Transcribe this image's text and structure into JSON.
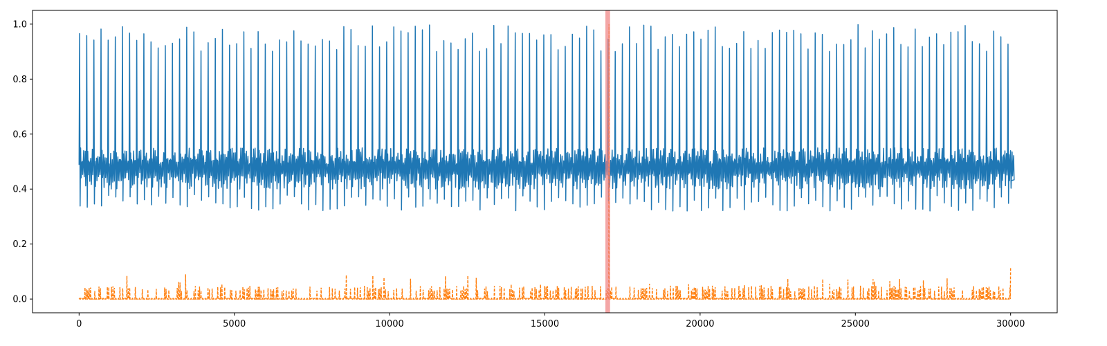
{
  "chart_data": {
    "type": "line",
    "title": "",
    "xlabel": "",
    "ylabel": "",
    "xlim": [
      -1500,
      31500
    ],
    "ylim": [
      -0.05,
      1.05
    ],
    "grid": false,
    "legend": "none",
    "x_ticks": [
      {
        "value": 0,
        "label": "0"
      },
      {
        "value": 5000,
        "label": "5000"
      },
      {
        "value": 10000,
        "label": "10000"
      },
      {
        "value": 15000,
        "label": "15000"
      },
      {
        "value": 20000,
        "label": "20000"
      },
      {
        "value": 25000,
        "label": "25000"
      },
      {
        "value": 30000,
        "label": "30000"
      }
    ],
    "y_ticks": [
      {
        "value": 0.0,
        "label": "0.0"
      },
      {
        "value": 0.2,
        "label": "0.2"
      },
      {
        "value": 0.4,
        "label": "0.4"
      },
      {
        "value": 0.6,
        "label": "0.6"
      },
      {
        "value": 0.8,
        "label": "0.8"
      },
      {
        "value": 1.0,
        "label": "1.0"
      }
    ],
    "series": [
      {
        "color": "#1f77b4",
        "style": "solid",
        "description_values": {
          "x_range": [
            0,
            30000
          ],
          "baseline_range": [
            0.32,
            0.56
          ],
          "peak_values": [
            0.9,
            1.0
          ],
          "peak_interval": 230
        }
      },
      {
        "color": "#ff7f0e",
        "style": "dashed",
        "description_values": {
          "x_range": [
            0,
            30000
          ],
          "typical_range": [
            0.0,
            0.1
          ],
          "spike_x": 17050,
          "spike_y": 1.0
        }
      }
    ],
    "highlight_region": {
      "x_start": 16950,
      "x_end": 17100,
      "color": "#f08080"
    }
  }
}
